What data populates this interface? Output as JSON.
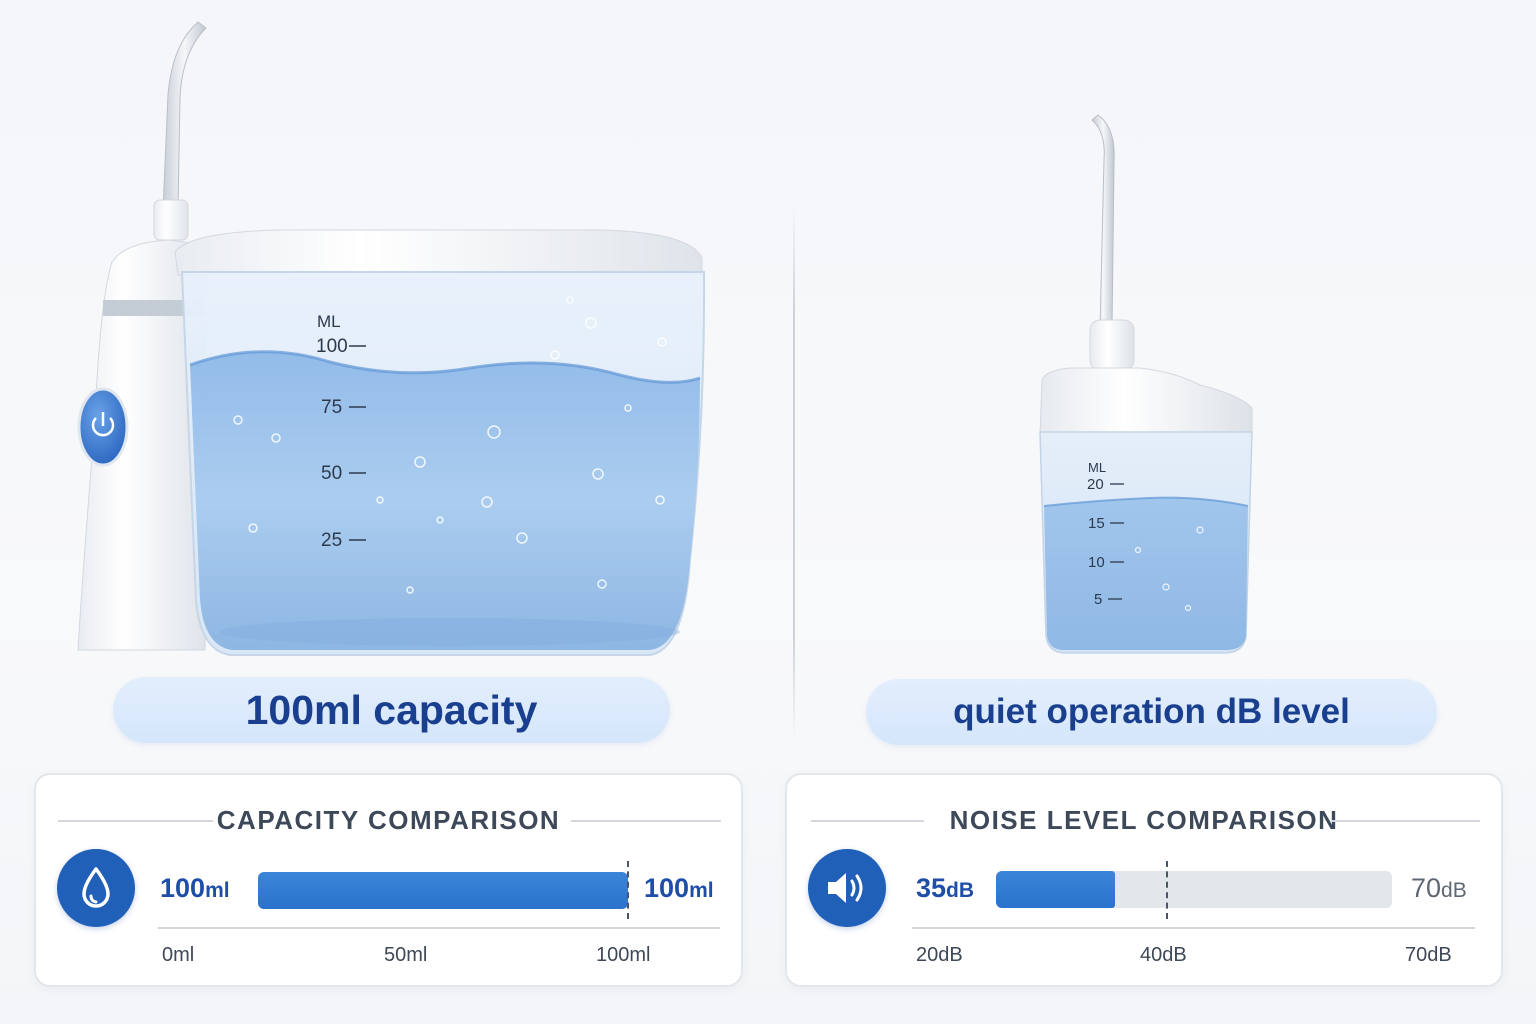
{
  "left_panel": {
    "scale": {
      "unit": "ML",
      "marks": [
        "100",
        "75",
        "50",
        "25"
      ]
    },
    "caption": "100ml capacity"
  },
  "right_panel": {
    "scale": {
      "unit": "ML",
      "marks": [
        "20",
        "15",
        "10",
        "5"
      ]
    },
    "caption": "quiet operation dB level"
  },
  "capacity_card": {
    "title": "CAPACITY COMPARISON",
    "icon": "water-drop-icon",
    "value_left": {
      "number": "100",
      "unit": "ml"
    },
    "value_right": {
      "number": "100",
      "unit": "ml"
    },
    "fill_fraction": 1.0,
    "axis": {
      "min": "0ml",
      "mid": "50ml",
      "max": "100ml"
    }
  },
  "noise_card": {
    "title": "NOISE LEVEL COMPARISON",
    "icon": "speaker-icon",
    "value_left": {
      "number": "35",
      "unit": "dB"
    },
    "value_right": {
      "number": "70",
      "unit": "dB"
    },
    "fill_fraction": 0.3,
    "axis": {
      "min": "20dB",
      "mid": "40dB",
      "max": "70dB"
    }
  },
  "colors": {
    "accent_blue": "#2160b8",
    "bar_blue": "#2a72cc",
    "caption_text": "#1a3f8f",
    "pill_bg": "#d9e9fb",
    "water": "#a9cbee"
  }
}
